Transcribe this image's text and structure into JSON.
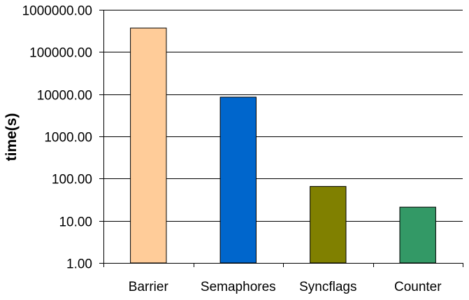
{
  "chart_data": {
    "type": "bar",
    "title": "",
    "xlabel": "",
    "ylabel": "time(s)",
    "yscale": "log",
    "ylim": [
      1,
      1000000
    ],
    "grid": true,
    "legend": "none",
    "yticks": [
      1,
      10,
      100,
      1000,
      10000,
      100000,
      1000000
    ],
    "ytick_labels": [
      "1.00",
      "10.00",
      "100.00",
      "1000.00",
      "10000.00",
      "100000.00",
      "1000000.00"
    ],
    "categories": [
      "Barrier",
      "Semaphores",
      "Syncflags",
      "Counter"
    ],
    "values": [
      370000,
      8500,
      65,
      21
    ],
    "colors": [
      "#FFCC99",
      "#0066CC",
      "#808000",
      "#339966"
    ]
  }
}
